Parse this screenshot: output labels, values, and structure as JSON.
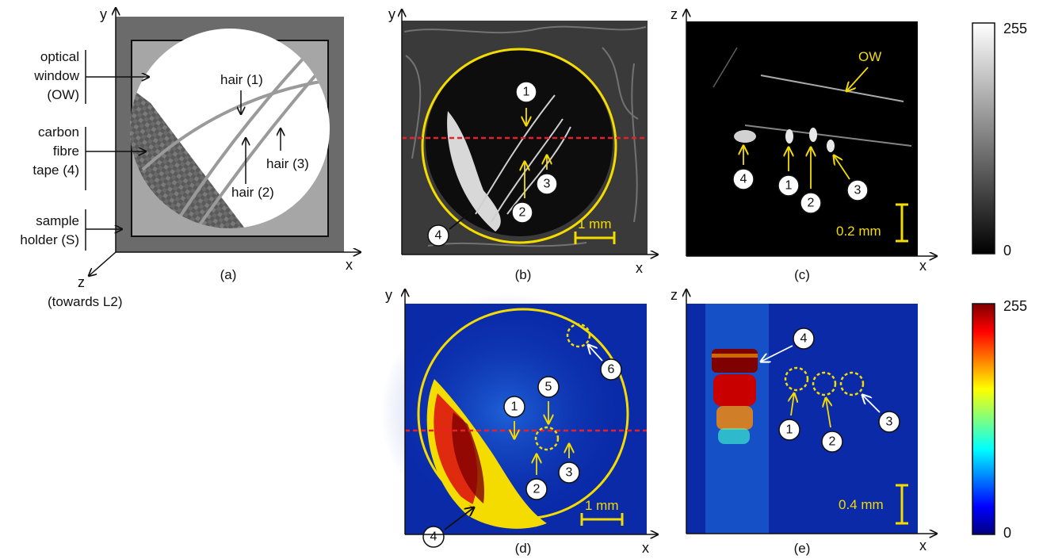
{
  "panels": {
    "a": {
      "caption": "(a)",
      "labels": {
        "optical_window": [
          "optical",
          "window",
          "(OW)"
        ],
        "carbon_tape": [
          "carbon",
          "fibre",
          "tape (4)"
        ],
        "sample_holder": [
          "sample",
          "holder (S)"
        ],
        "hair1": "hair (1)",
        "hair2": "hair (2)",
        "hair3": "hair (3)"
      },
      "axes": {
        "x": "x",
        "y": "y",
        "z": "z",
        "z_note": "(towards L2)"
      }
    },
    "b": {
      "caption": "(b)",
      "scale_bar": "1 mm",
      "axes": {
        "x": "x",
        "y": "y"
      },
      "badges": [
        "1",
        "2",
        "3",
        "4"
      ]
    },
    "c": {
      "caption": "(c)",
      "scale_bar": "0.2 mm",
      "ow_label": "OW",
      "axes": {
        "x": "x",
        "z": "z"
      },
      "badges": [
        "4",
        "1",
        "2",
        "3"
      ]
    },
    "d": {
      "caption": "(d)",
      "scale_bar": "1 mm",
      "axes": {
        "x": "x",
        "y": "y"
      },
      "badges": [
        "1",
        "2",
        "3",
        "4",
        "5",
        "6"
      ]
    },
    "e": {
      "caption": "(e)",
      "scale_bar": "0.4 mm",
      "axes": {
        "x": "x",
        "z": "z"
      },
      "badges": [
        "4",
        "1",
        "2",
        "3"
      ]
    }
  },
  "colorbars": {
    "gray": {
      "max": "255",
      "min": "0"
    },
    "jet": {
      "max": "255",
      "min": "0"
    }
  },
  "colors": {
    "yellow": "#f4dc00",
    "red_dash": "#e8202a",
    "holder_dark": "#6b6b6b",
    "holder_light": "#a6a6a6",
    "jet_background": "#0a2aa8"
  }
}
